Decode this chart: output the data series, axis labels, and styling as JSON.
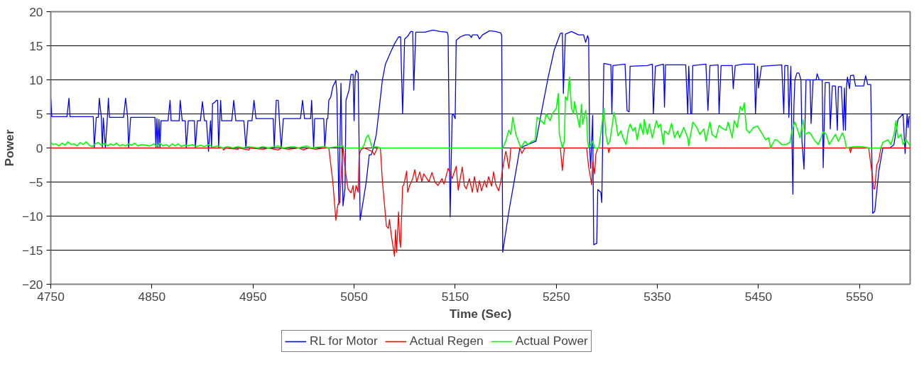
{
  "chart_data": {
    "type": "line",
    "xlabel": "Time (Sec)",
    "ylabel": "Power",
    "xlim": [
      4750,
      5600
    ],
    "xticks": [
      4750,
      4850,
      4950,
      5050,
      5150,
      5250,
      5350,
      5450,
      5550
    ],
    "ylim": [
      -20,
      20
    ],
    "yticks": [
      -20,
      -15,
      -10,
      -5,
      0,
      5,
      10,
      15,
      20
    ],
    "grid": "y",
    "legend": "bottom",
    "marker": "none",
    "line_style": "solid",
    "series": [
      {
        "name": "RL for Motor",
        "color": "#0000ff",
        "x": [
          4750,
          4751,
          4766,
          4768,
          4769,
          4792,
          4793,
          4795,
          4797,
          4798,
          4800,
          4801,
          4802,
          4804,
          4806,
          4807,
          4808,
          4822,
          4824,
          4826,
          4827,
          4829,
          4853,
          4854,
          4855,
          4856,
          4857,
          4858,
          4859,
          4866,
          4868,
          4869,
          4877,
          4878,
          4880,
          4883,
          4884,
          4886,
          4892,
          4893,
          4895,
          4898,
          4900,
          4902,
          4904,
          4906,
          4908,
          4909,
          4910,
          4912,
          4914,
          4915,
          4916,
          4918,
          4919,
          4929,
          4931,
          4933,
          4941,
          4943,
          4945,
          4949,
          4951,
          4953,
          4970,
          4971,
          4973,
          4975,
          4976,
          4978,
          4980,
          4997,
          4999,
          5001,
          5007,
          5008,
          5010,
          5011,
          5020,
          5021,
          5023,
          5024,
          5025,
          5027,
          5029,
          5032,
          5033,
          5035,
          5037,
          5039,
          5041,
          5042,
          5045,
          5047,
          5049,
          5050,
          5051,
          5052,
          5054,
          5056,
          5062,
          5065,
          5067,
          5069,
          5072,
          5075,
          5078,
          5081,
          5086,
          5090,
          5094,
          5096,
          5098,
          5100,
          5103,
          5106,
          5108,
          5109,
          5111,
          5120,
          5128,
          5135,
          5142,
          5143,
          5145,
          5147,
          5148,
          5150,
          5151,
          5155,
          5160,
          5164,
          5166,
          5167,
          5172,
          5174,
          5177,
          5184,
          5190,
          5195,
          5196,
          5197,
          5203,
          5208,
          5214,
          5222,
          5230,
          5235,
          5242,
          5248,
          5254,
          5256,
          5257,
          5259,
          5265,
          5272,
          5277,
          5279,
          5281,
          5282,
          5283,
          5284,
          5286,
          5287,
          5290,
          5291,
          5294,
          5295,
          5297,
          5304,
          5305,
          5306,
          5318,
          5320,
          5322,
          5323,
          5340,
          5345,
          5346,
          5348,
          5356,
          5357,
          5358,
          5378,
          5380,
          5381,
          5383,
          5384,
          5385,
          5398,
          5400,
          5402,
          5410,
          5411,
          5413,
          5424,
          5425,
          5427,
          5435,
          5446,
          5447,
          5449,
          5450,
          5453,
          5473,
          5475,
          5476,
          5479,
          5480,
          5482,
          5483,
          5484,
          5485,
          5486,
          5488,
          5490,
          5492,
          5493,
          5495,
          5497,
          5501,
          5502,
          5504,
          5507,
          5508,
          5510,
          5513,
          5514,
          5516,
          5520,
          5521,
          5523,
          5526,
          5528,
          5529,
          5532,
          5534,
          5535,
          5536,
          5537,
          5538,
          5540,
          5541,
          5544,
          5546,
          5554,
          5556,
          5558,
          5561,
          5563,
          5565,
          5569,
          5573,
          5580,
          5584,
          5588,
          5593,
          5595,
          5597,
          5598,
          5599
        ],
        "values": [
          7.3,
          4.6,
          4.6,
          7.3,
          4.6,
          4.6,
          0,
          4.5,
          4.5,
          7.3,
          4.5,
          0,
          4.4,
          0,
          4.5,
          7.3,
          4.5,
          4.5,
          7.3,
          4.5,
          0,
          4.5,
          4.5,
          0,
          4.3,
          0,
          4.2,
          0,
          4.0,
          4.0,
          7.0,
          4.0,
          4.0,
          7.0,
          4.0,
          4.0,
          0,
          4.0,
          4.0,
          0,
          4.0,
          4.0,
          6.8,
          4.0,
          4.0,
          -0.5,
          4.0,
          0,
          6.5,
          6.7,
          7.0,
          7.0,
          0,
          7.0,
          4.0,
          4.0,
          7.0,
          4.0,
          4.0,
          0,
          4.0,
          4.0,
          7.0,
          4.3,
          4.3,
          0,
          7,
          7,
          4.3,
          0,
          4.3,
          4.3,
          7,
          4.3,
          4.3,
          7,
          0,
          4.3,
          4.3,
          0,
          4.3,
          4.3,
          7,
          7.5,
          9,
          9.9,
          8,
          -8.3,
          9.5,
          -8.5,
          -6,
          7,
          8.5,
          10.8,
          10.8,
          4,
          10.5,
          11.4,
          11,
          -10.6,
          -5,
          -1,
          -1,
          0,
          2,
          6,
          10,
          12.3,
          14,
          15.3,
          16.3,
          16.3,
          5,
          16,
          16.4,
          17.1,
          17.1,
          8.5,
          17,
          17,
          17.3,
          17.1,
          17,
          16.5,
          -10.1,
          4.8,
          5,
          4.3,
          15.8,
          16.3,
          16.6,
          16.6,
          16.2,
          16.6,
          16.6,
          16,
          16.6,
          17.2,
          17.1,
          16.9,
          16.5,
          -15.3,
          -9.4,
          -5.2,
          0,
          0.5,
          1,
          5,
          10.4,
          14.4,
          16.8,
          16.9,
          8.0,
          16.7,
          17.1,
          16.6,
          16.6,
          15.5,
          16.5,
          16,
          0,
          -3,
          4.8,
          -14.2,
          -14,
          -6.1,
          -6.5,
          -8.0,
          12.4,
          12.2,
          5,
          12.1,
          12.3,
          5.5,
          5.3,
          12,
          12.1,
          12.3,
          5,
          12,
          12.3,
          6,
          12.2,
          12.2,
          5,
          12,
          5,
          5,
          12.1,
          12.3,
          5.5,
          12.1,
          12.2,
          5,
          12.1,
          12.1,
          8.7,
          12.1,
          12.3,
          12.3,
          5,
          12,
          8.8,
          12,
          12.2,
          5,
          12.1,
          12.1,
          4.5,
          12,
          2,
          -6.8,
          6,
          10,
          11,
          11,
          10,
          1,
          -3.1,
          10,
          10,
          3.6,
          10,
          10,
          10.9,
          10,
          10,
          -2.9,
          9.6,
          9.6,
          2.8,
          9.1,
          9.1,
          2.6,
          9,
          9,
          2.6,
          8.8,
          2.6,
          9,
          10.4,
          8.7,
          10.6,
          10.7,
          9.1,
          9.1,
          10.6,
          9.3,
          9.3,
          -9.6,
          -9.3,
          -3.4,
          0,
          0,
          0.5,
          4.2,
          5.0,
          -0.8,
          5,
          3,
          4.7
        ]
      },
      {
        "name": "Actual Regen",
        "color": "#ff0000",
        "x": [
          4750,
          4920,
          4921,
          4923,
          4935,
          4936,
          4946,
          4947,
          4960,
          4965,
          4975,
          4978,
          4985,
          4995,
          5000,
          5005,
          5012,
          5020,
          5025,
          5029,
          5032,
          5034,
          5036,
          5038,
          5039,
          5041,
          5044,
          5047,
          5049,
          5050,
          5052,
          5054,
          5055,
          5057,
          5060,
          5068,
          5070,
          5073,
          5076,
          5078,
          5082,
          5084,
          5085,
          5087,
          5090,
          5091,
          5092,
          5094,
          5095,
          5096,
          5098,
          5099,
          5102,
          5103,
          5105,
          5108,
          5110,
          5112,
          5115,
          5117,
          5119,
          5122,
          5124,
          5127,
          5130,
          5133,
          5137,
          5139,
          5143,
          5145,
          5147,
          5151,
          5153,
          5157,
          5159,
          5161,
          5164,
          5167,
          5169,
          5172,
          5174,
          5176,
          5179,
          5181,
          5183,
          5186,
          5188,
          5190,
          5193,
          5195,
          5197,
          5200,
          5201,
          5203,
          5204,
          5205,
          5214,
          5216,
          5218,
          5220,
          5254,
          5256,
          5258,
          5280,
          5282,
          5283,
          5285,
          5286,
          5288,
          5289,
          5291,
          5301,
          5302,
          5303,
          5540,
          5541,
          5542,
          5559,
          5562,
          5564,
          5565,
          5567,
          5569,
          5571,
          5600
        ],
        "values": [
          0,
          0,
          -0.3,
          0,
          -0.2,
          0,
          -0.3,
          0,
          -0.2,
          0,
          -0.3,
          0,
          -0.2,
          0,
          -0.3,
          0,
          -0.2,
          0,
          0,
          -5,
          -10.6,
          -8.3,
          -8,
          -1.7,
          0.3,
          -3,
          -6,
          -6.6,
          -5.5,
          -7.5,
          -5.5,
          -6.5,
          -1,
          -0.2,
          0,
          -0.5,
          -1,
          0,
          0,
          -4.9,
          -11.5,
          -11.8,
          -10.5,
          -13,
          -15.9,
          -12,
          -15.3,
          -9.4,
          -13.5,
          -14.6,
          -5.6,
          -5.5,
          -3.4,
          -6.5,
          -5.5,
          -4.5,
          -3.2,
          -5,
          -3.5,
          -4.9,
          -3.8,
          -4.5,
          -5,
          -3.6,
          -5,
          -5.5,
          -4.5,
          -5.3,
          -3,
          -3.5,
          -4.5,
          -2.7,
          -6.2,
          -2.8,
          -5.5,
          -6,
          -4.5,
          -6.5,
          -4.2,
          -6.5,
          -4.8,
          -6.3,
          -4.8,
          -5.8,
          -4.2,
          -5.6,
          -3.5,
          -5.3,
          -6.3,
          -5,
          -3,
          -0.5,
          -1,
          -3,
          -1.9,
          0,
          0,
          -0.8,
          -0.2,
          0,
          0,
          -3.3,
          0,
          0,
          -2.8,
          -3.6,
          -5.4,
          -2,
          -3.8,
          -1,
          0,
          0,
          -0.7,
          0,
          0,
          -0.7,
          0,
          0,
          -3.4,
          -6.0,
          -6.0,
          -2.5,
          -1.8,
          0,
          0
        ]
      },
      {
        "name": "Actual Power",
        "color": "#00ff00",
        "x": [
          4750,
          4752,
          4755,
          4758,
          4761,
          4764,
          4767,
          4770,
          4773,
          4776,
          4779,
          4782,
          4785,
          4788,
          4791,
          4794,
          4797,
          4800,
          4803,
          4806,
          4809,
          4812,
          4815,
          4818,
          4821,
          4824,
          4827,
          4830,
          4833,
          4836,
          4840,
          4844,
          4848,
          4852,
          4855,
          4858,
          4861,
          4864,
          4867,
          4870,
          4873,
          4876,
          4879,
          4882,
          4886,
          4890,
          4894,
          4898,
          4902,
          4906,
          4910,
          4915,
          4920,
          4925,
          4930,
          4935,
          4940,
          4945,
          4950,
          4955,
          4960,
          4965,
          4975,
          4980,
          4990,
          4995,
          5003,
          5007,
          5020,
          5024,
          5038,
          5040,
          5058,
          5060,
          5062,
          5064,
          5066,
          5068,
          5072,
          5075,
          5197,
          5200,
          5203,
          5205,
          5207,
          5210,
          5215,
          5219,
          5222,
          5226,
          5229,
          5231,
          5235,
          5238,
          5240,
          5244,
          5246,
          5250,
          5252,
          5253,
          5256,
          5258,
          5259,
          5261,
          5263,
          5265,
          5267,
          5268,
          5271,
          5273,
          5275,
          5276,
          5279,
          5280,
          5281,
          5282,
          5286,
          5288,
          5292,
          5294,
          5297,
          5299,
          5301,
          5303,
          5305,
          5307,
          5309,
          5311,
          5314,
          5316,
          5319,
          5321,
          5323,
          5326,
          5328,
          5330,
          5333,
          5336,
          5337,
          5340,
          5342,
          5345,
          5349,
          5351,
          5353,
          5356,
          5357,
          5361,
          5364,
          5367,
          5370,
          5372,
          5376,
          5380,
          5381,
          5385,
          5389,
          5392,
          5396,
          5398,
          5402,
          5404,
          5408,
          5411,
          5415,
          5418,
          5420,
          5424,
          5426,
          5429,
          5432,
          5434,
          5436,
          5438,
          5441,
          5445,
          5449,
          5454,
          5457,
          5460,
          5462,
          5466,
          5468,
          5473,
          5477,
          5481,
          5483,
          5486,
          5489,
          5491,
          5494,
          5496,
          5500,
          5502,
          5505,
          5509,
          5512,
          5514,
          5517,
          5520,
          5524,
          5526,
          5529,
          5533,
          5535,
          5537,
          5545,
          5552,
          5559,
          5571,
          5573,
          5578,
          5581,
          5584,
          5586,
          5588,
          5591,
          5593,
          5596,
          5600
        ],
        "values": [
          0.8,
          0.5,
          0.6,
          0.3,
          0.7,
          0.4,
          0.9,
          0.5,
          0.6,
          0.3,
          0.8,
          0.5,
          0.9,
          0.4,
          0.2,
          0.6,
          0.8,
          0.4,
          0.7,
          0.3,
          0.6,
          0.4,
          0.7,
          0.3,
          0.5,
          0.3,
          0.6,
          0.4,
          0.7,
          0.3,
          0.5,
          0.4,
          0.3,
          0.6,
          0.2,
          0.7,
          0.3,
          0.5,
          0.2,
          0.6,
          0.3,
          0.6,
          0.2,
          0.4,
          0.3,
          0.5,
          0.2,
          0.4,
          0.2,
          0.5,
          0.1,
          0.3,
          0,
          0.2,
          0,
          0.2,
          0,
          0.2,
          0.1,
          0,
          0.2,
          0,
          0.3,
          0,
          0.2,
          0,
          0.3,
          0,
          0.2,
          0,
          0.3,
          0,
          0,
          0.5,
          1.5,
          1.9,
          1,
          0,
          0.2,
          0,
          0,
          1,
          2.6,
          2,
          4.5,
          2,
          0,
          1,
          0.5,
          1,
          1.1,
          4.5,
          4,
          3.5,
          5,
          4,
          5,
          5.8,
          8,
          2,
          0,
          1,
          7.5,
          7,
          10.4,
          5.9,
          5,
          6.8,
          4.5,
          3,
          6.4,
          3.5,
          5.5,
          4.5,
          1,
          0,
          1,
          0,
          0,
          2,
          5.8,
          2,
          0.5,
          1,
          3,
          5.2,
          3.8,
          1.8,
          2.5,
          1.5,
          0.5,
          2.5,
          3.5,
          2.5,
          3,
          1.2,
          3.6,
          2,
          4.2,
          2,
          3.5,
          1.5,
          4,
          3,
          3.5,
          0.5,
          2.5,
          2,
          3.6,
          1.5,
          2.5,
          1.5,
          3,
          1.5,
          0.3,
          3.8,
          3,
          2,
          2.8,
          1,
          3.8,
          2,
          1.5,
          3.3,
          2.8,
          2.6,
          3.8,
          1.5,
          4,
          3,
          6.1,
          5.5,
          6.6,
          2.7,
          2.2,
          3,
          3.2,
          2,
          1.2,
          1.5,
          0,
          1.2,
          1.2,
          0.5,
          0.5,
          0.8,
          2.5,
          3.8,
          2.5,
          1.5,
          4.1,
          2,
          2.3,
          2,
          1.2,
          0.5,
          1.5,
          2.4,
          2,
          0.5,
          1.5,
          2,
          1,
          2.2,
          1.5,
          0,
          0.2,
          0.2,
          0,
          0,
          0.8,
          1.2,
          0.5,
          2,
          4,
          1.5,
          2,
          0.5,
          1.2,
          0.3
        ]
      }
    ]
  }
}
